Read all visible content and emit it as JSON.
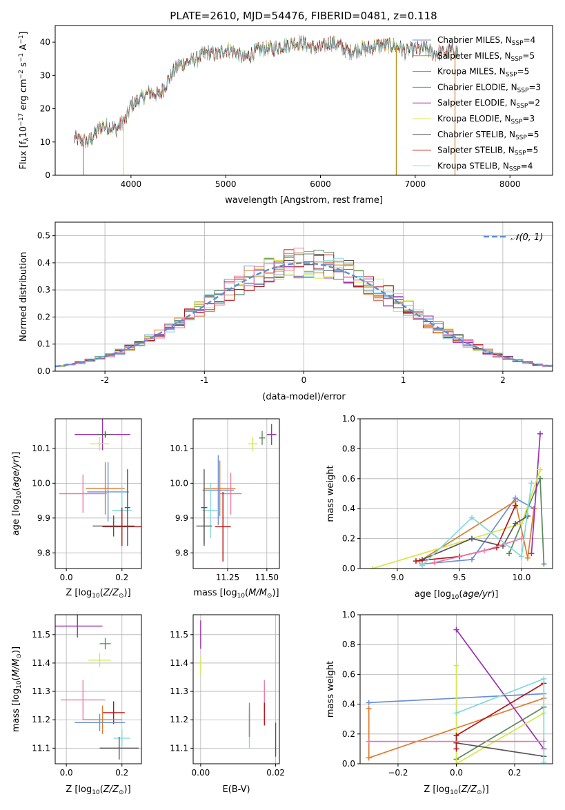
{
  "title": "PLATE=2610, MJD=54476, FIBERID=0481, z=0.118",
  "colors": {
    "Chabrier MILES": "#6a8fd6",
    "Salpeter MILES": "#e07a2a",
    "Kroupa MILES": "#b8860b",
    "Chabrier ELODIE": "#5a8a5a",
    "Salpeter ELODIE": "#9b30b0",
    "Kroupa ELODIE": "#d4e84a",
    "Chabrier STELIB": "#555555",
    "Salpeter STELIB": "#b81414",
    "Kroupa STELIB": "#7fd8dc",
    "extra_pink": "#e87aa8"
  },
  "chart_data": [
    {
      "id": "spectrum",
      "type": "line",
      "xlabel": "wavelength [Angstrom, rest frame]",
      "ylabel": "Flux [f_λ 10^-17 erg cm^-2 s^-1 A^-1]",
      "xlim": [
        3200,
        8450
      ],
      "ylim": [
        0,
        45
      ],
      "xticks": [
        4000,
        5000,
        6000,
        7000,
        8000
      ],
      "yticks": [
        0,
        10,
        20,
        30,
        40
      ],
      "legend_position": "top-right",
      "series": [
        {
          "name": "Chabrier MILES, N_SSP=4",
          "label": "Chabrier MILES, N",
          "sub": "SSP",
          "tail": "=4"
        },
        {
          "name": "Salpeter MILES, N_SSP=5",
          "label": "Salpeter MILES, N",
          "sub": "SSP",
          "tail": "=5"
        },
        {
          "name": "Kroupa MILES, N_SSP=5",
          "label": "Kroupa MILES, N",
          "sub": "SSP",
          "tail": "=5"
        },
        {
          "name": "Chabrier ELODIE, N_SSP=3",
          "label": "Chabrier ELODIE, N",
          "sub": "SSP",
          "tail": "=3"
        },
        {
          "name": "Salpeter ELODIE, N_SSP=2",
          "label": "Salpeter ELODIE, N",
          "sub": "SSP",
          "tail": "=2"
        },
        {
          "name": "Kroupa ELODIE, N_SSP=3",
          "label": "Kroupa ELODIE, N",
          "sub": "SSP",
          "tail": "=3"
        },
        {
          "name": "Chabrier STELIB, N_SSP=5",
          "label": "Chabrier STELIB, N",
          "sub": "SSP",
          "tail": "=5"
        },
        {
          "name": "Salpeter STELIB, N_SSP=5",
          "label": "Salpeter STELIB, N",
          "sub": "SSP",
          "tail": "=5"
        },
        {
          "name": "Kroupa STELIB, N_SSP=4",
          "label": "Kroupa STELIB, N",
          "sub": "SSP",
          "tail": "=4"
        }
      ],
      "continuum_points": [
        [
          3400,
          11
        ],
        [
          3550,
          10
        ],
        [
          3700,
          15
        ],
        [
          3850,
          14
        ],
        [
          3950,
          17
        ],
        [
          4000,
          21
        ],
        [
          4100,
          23
        ],
        [
          4200,
          25
        ],
        [
          4300,
          24
        ],
        [
          4400,
          29
        ],
        [
          4500,
          33
        ],
        [
          4600,
          34
        ],
        [
          4700,
          35
        ],
        [
          4800,
          37
        ],
        [
          4900,
          36
        ],
        [
          5000,
          38
        ],
        [
          5100,
          37
        ],
        [
          5200,
          35
        ],
        [
          5300,
          37
        ],
        [
          5400,
          38
        ],
        [
          5500,
          38
        ],
        [
          5600,
          39
        ],
        [
          5700,
          39.5
        ],
        [
          5800,
          40
        ],
        [
          5900,
          38.5
        ],
        [
          6000,
          38
        ],
        [
          6100,
          40
        ],
        [
          6200,
          39
        ],
        [
          6300,
          37
        ],
        [
          6400,
          38
        ],
        [
          6500,
          38
        ],
        [
          6600,
          39
        ],
        [
          6700,
          39
        ],
        [
          6800,
          39
        ],
        [
          6900,
          37
        ],
        [
          7000,
          38
        ],
        [
          7100,
          38
        ],
        [
          7200,
          36.5
        ],
        [
          7300,
          37
        ],
        [
          7400,
          37.5
        ],
        [
          7450,
          37
        ]
      ],
      "dropouts": [
        {
          "x": 3500,
          "series": "Salpeter MILES",
          "to": 0
        },
        {
          "x": 3920,
          "series": "Kroupa ELODIE",
          "to": 0
        },
        {
          "x": 6800,
          "series": "Kroupa MILES",
          "to": 0
        },
        {
          "x": 7420,
          "series": "Salpeter MILES",
          "to": 0
        }
      ]
    },
    {
      "id": "residuals",
      "type": "bar",
      "xlabel": "(data-model)/error",
      "ylabel": "Normed distribution",
      "xlim": [
        -2.5,
        2.5
      ],
      "ylim": [
        0,
        0.55
      ],
      "xticks": [
        -2,
        -1,
        0,
        1,
        2
      ],
      "yticks": [
        0.0,
        0.1,
        0.2,
        0.3,
        0.4,
        0.5
      ],
      "grid": true,
      "legend_position": "top-right",
      "reference_curve": {
        "label": "𝒩(0, 1)",
        "mean": 0,
        "sigma": 1
      },
      "bin_width": 0.1
    },
    {
      "id": "age_vs_Z",
      "type": "scatter",
      "xlabel": "Z [log10(Z/Z⊙)]",
      "ylabel": "age [log10(age/yr)]",
      "xlim": [
        -0.04,
        0.27
      ],
      "ylim": [
        9.755,
        10.185
      ],
      "xticks": [
        0.0,
        0.2
      ],
      "yticks": [
        9.8,
        9.9,
        10.0,
        10.1
      ],
      "grid": true,
      "points": [
        {
          "series": "Salpeter ELODIE",
          "x": 0.13,
          "y": 10.14,
          "xerr": 0.1,
          "yerr": 0.045
        },
        {
          "series": "Chabrier ELODIE",
          "x": 0.14,
          "y": 10.14,
          "xerr": 0.025,
          "yerr": 0.01
        },
        {
          "series": "Chabrier STELIB",
          "x": 0.14,
          "y": 10.14,
          "xerr": 0.03,
          "yerr": 0.008
        },
        {
          "series": "Kroupa ELODIE",
          "x": 0.12,
          "y": 10.113,
          "xerr": 0.035,
          "yerr": 0.02
        },
        {
          "series": "Chabrier MILES",
          "x": 0.15,
          "y": 9.975,
          "xerr": 0.075,
          "yerr": 0.085
        },
        {
          "series": "Salpeter MILES",
          "x": 0.14,
          "y": 9.985,
          "xerr": 0.07,
          "yerr": 0.075
        },
        {
          "series": "extra_pink",
          "x": 0.06,
          "y": 9.97,
          "xerr": 0.085,
          "yerr": 0.055
        },
        {
          "series": "Kroupa STELIB",
          "x": 0.2,
          "y": 9.922,
          "xerr": 0.035,
          "yerr": 0.07
        },
        {
          "series": "Chabrier STELIB",
          "x": 0.22,
          "y": 9.93,
          "xerr": 0.01,
          "yerr": 0.11
        },
        {
          "series": "Salpeter STELIB",
          "x": 0.2,
          "y": 9.875,
          "xerr": 0.07,
          "yerr": 0.055
        },
        {
          "series": "Chabrier STELIB",
          "x": 0.17,
          "y": 9.877,
          "xerr": 0.075,
          "yerr": 0.03
        }
      ]
    },
    {
      "id": "age_vs_mass",
      "type": "scatter",
      "xlabel": "mass [log10(M/M⊙)]",
      "ylabel": "",
      "xlim": [
        11.03,
        11.58
      ],
      "ylim": [
        9.755,
        10.185
      ],
      "xticks": [
        11.25,
        11.5
      ],
      "yticks": [
        9.8,
        9.9,
        10.0,
        10.1
      ],
      "grid": true,
      "points": [
        {
          "series": "Salpeter ELODIE",
          "x": 11.53,
          "y": 10.14,
          "xerr": 0.03,
          "yerr": 0.03
        },
        {
          "series": "Chabrier ELODIE",
          "x": 11.47,
          "y": 10.13,
          "xerr": 0.02,
          "yerr": 0.02
        },
        {
          "series": "Kroupa ELODIE",
          "x": 11.41,
          "y": 10.113,
          "xerr": 0.03,
          "yerr": 0.02
        },
        {
          "series": "Chabrier MILES",
          "x": 11.19,
          "y": 9.98,
          "xerr": 0.1,
          "yerr": 0.1
        },
        {
          "series": "Salpeter MILES",
          "x": 11.2,
          "y": 9.985,
          "xerr": 0.1,
          "yerr": 0.08
        },
        {
          "series": "extra_pink",
          "x": 11.27,
          "y": 9.97,
          "xerr": 0.07,
          "yerr": 0.06
        },
        {
          "series": "Kroupa STELIB",
          "x": 11.14,
          "y": 9.922,
          "xerr": 0.05,
          "yerr": 0.08
        },
        {
          "series": "Chabrier STELIB",
          "x": 11.1,
          "y": 9.93,
          "xerr": 0.02,
          "yerr": 0.11
        },
        {
          "series": "Salpeter STELIB",
          "x": 11.22,
          "y": 9.875,
          "xerr": 0.05,
          "yerr": 0.1
        },
        {
          "series": "Chabrier STELIB",
          "x": 11.1,
          "y": 9.877,
          "xerr": 0.05,
          "yerr": 0.05
        }
      ]
    },
    {
      "id": "weight_vs_age",
      "type": "line",
      "xlabel": "age [log10(age/yr)]",
      "ylabel": "mass weight",
      "xlim": [
        8.7,
        10.25
      ],
      "ylim": [
        0,
        1.0
      ],
      "xticks": [
        9.0,
        9.5,
        10.0
      ],
      "yticks": [
        0.0,
        0.2,
        0.4,
        0.6,
        0.8,
        1.0
      ],
      "grid": true,
      "series": [
        {
          "name": "Chabrier MILES",
          "x": [
            9.2,
            9.6,
            9.95,
            10.1
          ],
          "y": [
            0.03,
            0.06,
            0.47,
            0.4
          ]
        },
        {
          "name": "Salpeter MILES",
          "x": [
            9.18,
            9.95,
            10.05,
            10.1
          ],
          "y": [
            0.05,
            0.45,
            0.07,
            0.4
          ]
        },
        {
          "name": "Chabrier ELODIE",
          "x": [
            9.9,
            10.15,
            10.18
          ],
          "y": [
            0.1,
            0.6,
            0.03
          ]
        },
        {
          "name": "Salpeter ELODIE",
          "x": [
            10.08,
            10.15
          ],
          "y": [
            0.1,
            0.9
          ]
        },
        {
          "name": "Kroupa ELODIE",
          "x": [
            8.8,
            10.0,
            10.15
          ],
          "y": [
            0.0,
            0.3,
            0.66
          ]
        },
        {
          "name": "Chabrier STELIB",
          "x": [
            9.2,
            9.6,
            9.85,
            9.95,
            10.05
          ],
          "y": [
            0.06,
            0.2,
            0.15,
            0.3,
            0.35
          ]
        },
        {
          "name": "Salpeter STELIB",
          "x": [
            9.15,
            9.5,
            9.8,
            9.95
          ],
          "y": [
            0.05,
            0.08,
            0.14,
            0.42
          ]
        },
        {
          "name": "Kroupa STELIB",
          "x": [
            9.2,
            9.6,
            10.0,
            10.08
          ],
          "y": [
            0.02,
            0.34,
            0.08,
            0.57
          ]
        },
        {
          "name": "extra_pink",
          "x": [
            9.3,
            9.7,
            10.0
          ],
          "y": [
            0.04,
            0.12,
            0.2
          ]
        }
      ]
    },
    {
      "id": "mass_vs_Z",
      "type": "scatter",
      "xlabel": "Z [log10(Z/Z⊙)]",
      "ylabel": "mass [log10(M/M⊙)]",
      "xlim": [
        -0.04,
        0.27
      ],
      "ylim": [
        11.045,
        11.57
      ],
      "xticks": [
        0.0,
        0.2
      ],
      "yticks": [
        11.1,
        11.2,
        11.3,
        11.4,
        11.5
      ],
      "grid": true,
      "points": [
        {
          "series": "Salpeter ELODIE",
          "x": 0.04,
          "y": 11.53,
          "xerr": 0.09,
          "yerr": 0.04
        },
        {
          "series": "Chabrier ELODIE",
          "x": 0.14,
          "y": 11.468,
          "xerr": 0.02,
          "yerr": 0.02
        },
        {
          "series": "Kroupa ELODIE",
          "x": 0.12,
          "y": 11.41,
          "xerr": 0.04,
          "yerr": 0.025
        },
        {
          "series": "extra_pink",
          "x": 0.06,
          "y": 11.27,
          "xerr": 0.08,
          "yerr": 0.07
        },
        {
          "series": "Salpeter STELIB",
          "x": 0.17,
          "y": 11.225,
          "xerr": 0.04,
          "yerr": 0.04
        },
        {
          "series": "Salpeter MILES",
          "x": 0.13,
          "y": 11.2,
          "xerr": 0.07,
          "yerr": 0.05
        },
        {
          "series": "Chabrier MILES",
          "x": 0.12,
          "y": 11.19,
          "xerr": 0.09,
          "yerr": 0.03
        },
        {
          "series": "Kroupa STELIB",
          "x": 0.2,
          "y": 11.135,
          "xerr": 0.03,
          "yerr": 0.03
        },
        {
          "series": "Chabrier STELIB",
          "x": 0.19,
          "y": 11.1,
          "xerr": 0.07,
          "yerr": 0.04
        }
      ]
    },
    {
      "id": "mass_vs_EBV",
      "type": "scatter",
      "xlabel": "E(B-V)",
      "ylabel": "",
      "xlim": [
        -0.002,
        0.021
      ],
      "ylim": [
        11.045,
        11.57
      ],
      "xticks": [
        0.0,
        0.02
      ],
      "yticks": [
        11.1,
        11.2,
        11.3,
        11.4,
        11.5
      ],
      "grid": true,
      "points": [
        {
          "series": "Salpeter ELODIE",
          "x": 0.0,
          "y": 11.5,
          "xerr": 0,
          "yerr": 0.05
        },
        {
          "series": "Kroupa ELODIE",
          "x": 0.0,
          "y": 11.39,
          "xerr": 0,
          "yerr": 0.03
        },
        {
          "series": "Kroupa STELIB",
          "x": 0.013,
          "y": 11.16,
          "xerr": 0,
          "yerr": 0.06
        },
        {
          "series": "Chabrier MILES",
          "x": 0.013,
          "y": 11.2,
          "xerr": 0,
          "yerr": 0.06
        },
        {
          "series": "Salpeter MILES",
          "x": 0.013,
          "y": 11.19,
          "xerr": 0,
          "yerr": 0.05
        },
        {
          "series": "extra_pink",
          "x": 0.017,
          "y": 11.27,
          "xerr": 0,
          "yerr": 0.07
        },
        {
          "series": "Salpeter STELIB",
          "x": 0.017,
          "y": 11.22,
          "xerr": 0,
          "yerr": 0.04
        },
        {
          "series": "Chabrier STELIB",
          "x": 0.02,
          "y": 11.13,
          "xerr": 0,
          "yerr": 0.06
        }
      ]
    },
    {
      "id": "weight_vs_Z",
      "type": "line",
      "xlabel": "Z [log10(Z/Z⊙)]",
      "ylabel": "mass weight",
      "xlim": [
        -0.33,
        0.33
      ],
      "ylim": [
        0,
        1.0
      ],
      "xticks": [
        -0.2,
        0.0,
        0.2
      ],
      "yticks": [
        0.0,
        0.2,
        0.4,
        0.6,
        0.8,
        1.0
      ],
      "grid": true,
      "series": [
        {
          "name": "Chabrier MILES",
          "x": [
            -0.3,
            0.3
          ],
          "y": [
            0.41,
            0.47
          ]
        },
        {
          "name": "Salpeter MILES",
          "x": [
            -0.3,
            -0.3,
            0.3
          ],
          "y": [
            0.37,
            0.04,
            0.44
          ]
        },
        {
          "name": "Chabrier ELODIE",
          "x": [
            0.0,
            0.3
          ],
          "y": [
            0.03,
            0.38
          ]
        },
        {
          "name": "Salpeter ELODIE",
          "x": [
            0.0,
            0.3
          ],
          "y": [
            0.9,
            0.1
          ]
        },
        {
          "name": "Kroupa ELODIE",
          "x": [
            0.0,
            0.0,
            0.3
          ],
          "y": [
            0.66,
            0.0,
            0.34
          ]
        },
        {
          "name": "Chabrier STELIB",
          "x": [
            0.0,
            0.3
          ],
          "y": [
            0.14,
            0.05
          ]
        },
        {
          "name": "Salpeter STELIB",
          "x": [
            0.0,
            0.0,
            0.3
          ],
          "y": [
            0.1,
            0.19,
            0.54
          ]
        },
        {
          "name": "Kroupa STELIB",
          "x": [
            0.0,
            0.3,
            0.3
          ],
          "y": [
            0.34,
            0.57,
            0.01
          ]
        },
        {
          "name": "extra_pink",
          "x": [
            -0.3,
            0.3
          ],
          "y": [
            0.15,
            0.15
          ]
        }
      ]
    }
  ]
}
